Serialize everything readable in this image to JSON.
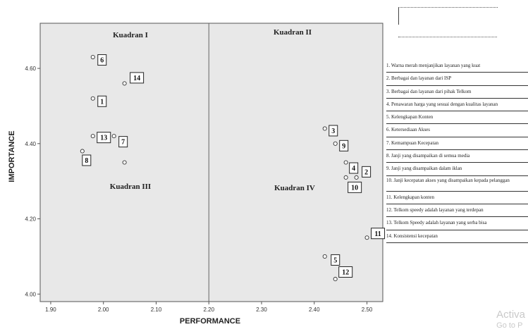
{
  "chart_data": {
    "type": "scatter",
    "xlabel": "PERFORMANCE",
    "ylabel": "IMPORTANCE",
    "xlim": [
      1.88,
      2.53
    ],
    "ylim": [
      3.98,
      4.72
    ],
    "xticks": [
      1.9,
      2.0,
      2.1,
      2.2,
      2.3,
      2.4,
      2.5
    ],
    "yticks": [
      4.0,
      4.2,
      4.4,
      4.6
    ],
    "xtick_labels": [
      "1.90",
      "2.00",
      "2.10",
      "2.20",
      "2.30",
      "2.40",
      "2.50"
    ],
    "ytick_labels": [
      "4.00",
      "4.20",
      "4.40",
      "4.60"
    ],
    "ref_x": 2.2,
    "quadrants": [
      {
        "label": "Kuadran I"
      },
      {
        "label": "Kuadran II"
      },
      {
        "label": "Kuadran III"
      },
      {
        "label": "Kuadran IV"
      }
    ],
    "points": [
      {
        "id": "1",
        "x": 1.98,
        "y": 4.52
      },
      {
        "id": "2",
        "x": 2.48,
        "y": 4.31
      },
      {
        "id": "3",
        "x": 2.42,
        "y": 4.44
      },
      {
        "id": "4",
        "x": 2.46,
        "y": 4.35
      },
      {
        "id": "5",
        "x": 2.42,
        "y": 4.1
      },
      {
        "id": "6",
        "x": 1.98,
        "y": 4.63
      },
      {
        "id": "7",
        "x": 2.02,
        "y": 4.42
      },
      {
        "id": "8",
        "x": 1.96,
        "y": 4.38
      },
      {
        "id": "9",
        "x": 2.44,
        "y": 4.4
      },
      {
        "id": "10",
        "x": 2.46,
        "y": 4.31
      },
      {
        "id": "11",
        "x": 2.5,
        "y": 4.15
      },
      {
        "id": "12",
        "x": 2.44,
        "y": 4.04
      },
      {
        "id": "13",
        "x": 1.98,
        "y": 4.42
      },
      {
        "id": "14",
        "x": 2.04,
        "y": 4.56
      },
      {
        "id": "",
        "x": 2.04,
        "y": 4.35
      }
    ],
    "legend": [
      "1. Warna merah menjanjikan layanan yang kuat",
      "2. Berbagai dan layanan dari ISP",
      "3. Berbagai dan layanan dari pihak Telkom",
      "4. Penawaran harga yang sesuai dengan kualitas layanan",
      "5. Kelengkapan Konten",
      "6. Ketersediaan Akses",
      "7. Kemampuan Kecepatan",
      "8. Janji yang disampaikan di semua media",
      "9. Janji yang disampaikan dalam iklan",
      "10. Janji kecepatan akses yang disampaikan kepada pelanggan",
      "11. Kelengkapan konten",
      "12. Telkom speedy adalah layanan yang terdepan",
      "13. Telkom Speedy adalah layanan yang serba bisa",
      "14. Konsistensi kecepatan"
    ]
  },
  "watermark": {
    "line1": "Activa",
    "line2": "Go to P"
  }
}
